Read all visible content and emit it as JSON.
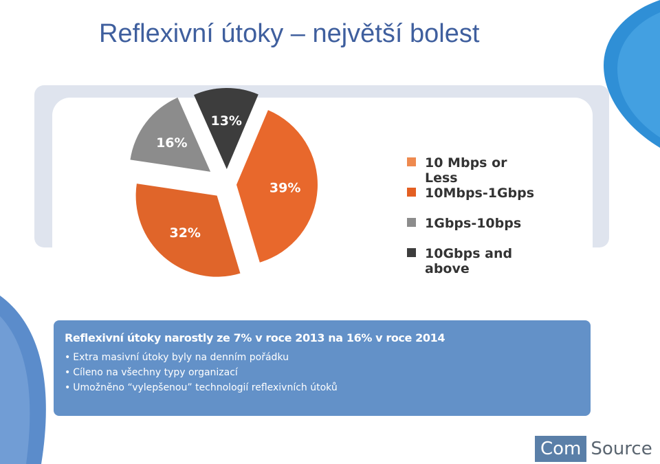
{
  "slide": {
    "title": "Reflexivní útoky – největší bolest"
  },
  "chart_data": {
    "type": "pie",
    "slices": [
      {
        "label": "10 Mbps or Less",
        "value": 0,
        "value_label": "",
        "color": "#ee8a4f"
      },
      {
        "label": "10Mbps-1Gbps",
        "value": 39,
        "value_label": "39%",
        "color": "#e8682c"
      },
      {
        "label": "",
        "value": 32,
        "value_label": "32%",
        "color": "#e0652a"
      },
      {
        "label": "1Gbps-10bps",
        "value": 16,
        "value_label": "16%",
        "color": "#8c8c8c"
      },
      {
        "label": "10Gbps and above",
        "value": 13,
        "value_label": "13%",
        "color": "#3d3d3d"
      }
    ],
    "legend": {
      "placement": "right",
      "entries": [
        {
          "line1": "10 Mbps or",
          "line2": "Less",
          "color": "#ee8a4f"
        },
        {
          "line1": "10Mbps-1Gbps",
          "line2": "",
          "color": "#e35f22"
        },
        {
          "line1": "1Gbps-10bps",
          "line2": "",
          "color": "#8c8c8c"
        },
        {
          "line1": "10Gbps and",
          "line2": "above",
          "color": "#3d3d3d"
        }
      ]
    }
  },
  "info": {
    "heading": "Reflexivní útoky narostly ze 7% v roce 2013 na 16% v roce 2014",
    "bullets": [
      "Extra masivní útoky byly na denním pořádku",
      "Cíleno na všechny typy organizací",
      "Umožněno “vylepšenou” technologií reflexivních útoků"
    ]
  },
  "logo": {
    "part1": "Com",
    "part2": "Source"
  },
  "colors": {
    "title": "#3f5f9e",
    "accent_blue": "#6391c8",
    "frame": "#dfe4ee"
  }
}
